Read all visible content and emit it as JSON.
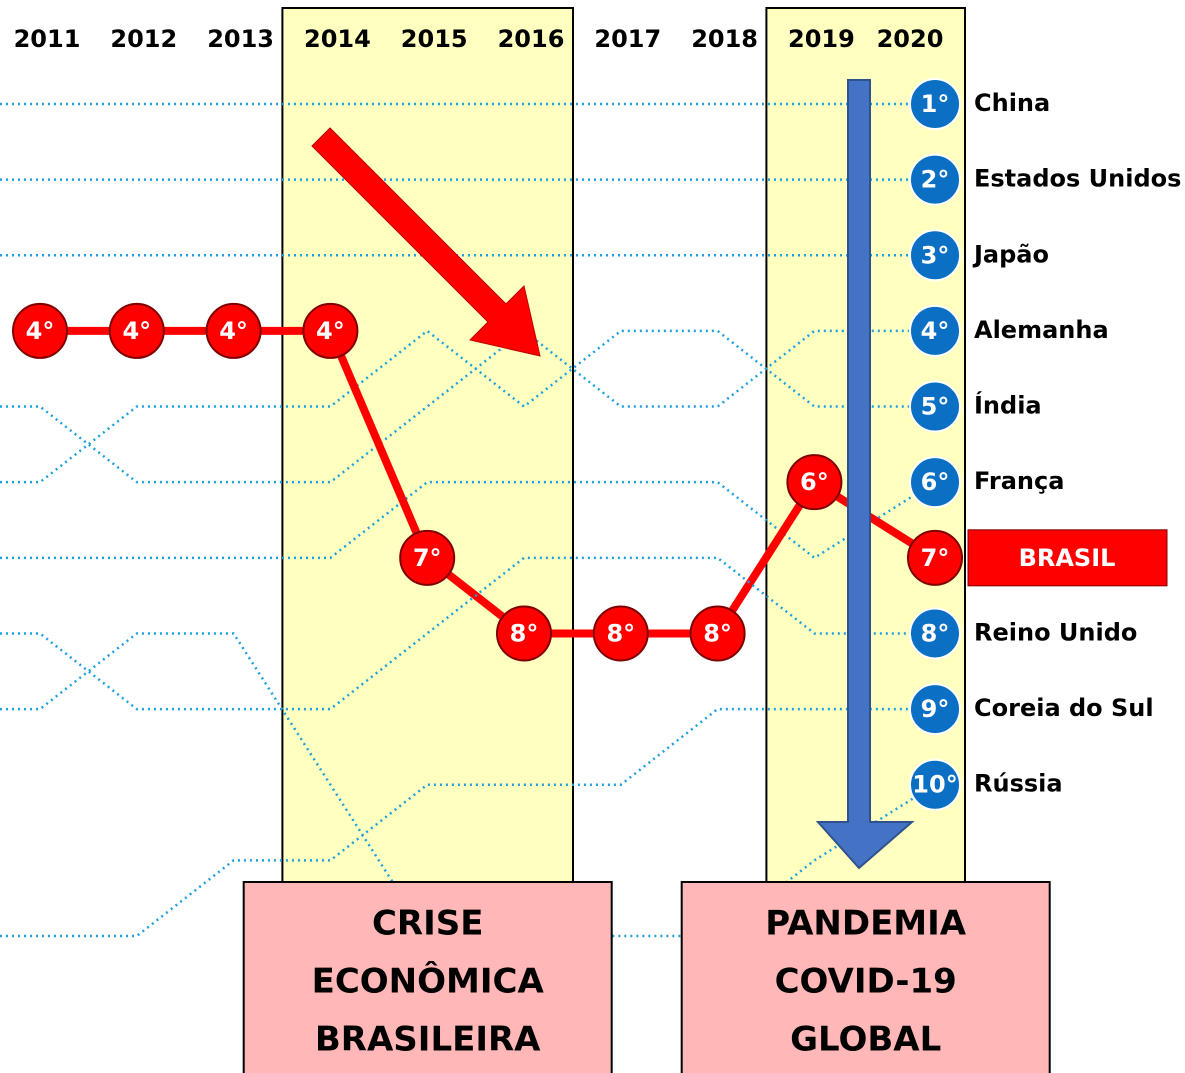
{
  "chart_data": {
    "type": "bump",
    "categories": [
      "2011",
      "2012",
      "2013",
      "2014",
      "2015",
      "2016",
      "2017",
      "2018",
      "2019",
      "2020"
    ],
    "ylim": [
      1,
      12
    ],
    "series": [
      {
        "name": "China",
        "color": "#1ea0e0",
        "values": [
          1,
          1,
          1,
          1,
          1,
          1,
          1,
          1,
          1,
          1
        ],
        "end_label": "1°"
      },
      {
        "name": "Estados Unidos",
        "color": "#1ea0e0",
        "values": [
          2,
          2,
          2,
          2,
          2,
          2,
          2,
          2,
          2,
          2
        ],
        "end_label": "2°"
      },
      {
        "name": "Japão",
        "color": "#1ea0e0",
        "values": [
          3,
          3,
          3,
          3,
          3,
          3,
          3,
          3,
          3,
          3
        ],
        "end_label": "3°"
      },
      {
        "name": "Alemanha",
        "color": "#1ea0e0",
        "values": [
          5,
          6,
          6,
          6,
          5,
          4,
          5,
          5,
          4,
          4
        ],
        "end_label": "4°"
      },
      {
        "name": "Índia",
        "color": "#1ea0e0",
        "values": [
          6,
          5,
          5,
          5,
          4,
          5,
          4,
          4,
          5,
          5
        ],
        "end_label": "5°"
      },
      {
        "name": "França",
        "color": "#1ea0e0",
        "values": [
          7,
          7,
          7,
          7,
          6,
          6,
          6,
          6,
          7,
          6
        ],
        "end_label": "6°"
      },
      {
        "name": "BRASIL",
        "color": "#ff0000",
        "highlight": true,
        "values": [
          4,
          4,
          4,
          4,
          7,
          8,
          8,
          8,
          6,
          7
        ],
        "value_labels": [
          "4°",
          "4°",
          "4°",
          "4°",
          "7°",
          "8°",
          "8°",
          "8°",
          "6°",
          "7°"
        ]
      },
      {
        "name": "Reino Unido",
        "color": "#1ea0e0",
        "values": [
          8,
          9,
          9,
          9,
          8,
          7,
          7,
          7,
          8,
          8
        ],
        "end_label": "8°"
      },
      {
        "name": "Coreia do Sul",
        "color": "#1ea0e0",
        "values": [
          12,
          12,
          11,
          11,
          10,
          10,
          10,
          9,
          9,
          9
        ],
        "end_label": "9°"
      },
      {
        "name": "Rússia",
        "color": "#1ea0e0",
        "values": [
          9,
          8,
          8,
          10,
          12,
          12,
          12,
          12,
          11,
          10
        ],
        "end_label": "10°"
      }
    ],
    "periods": [
      {
        "from": "2014",
        "to": "2016",
        "lines": [
          "CRISE",
          "ECONÔMICA",
          "BRASILEIRA"
        ]
      },
      {
        "from": "2019",
        "to": "2020",
        "lines": [
          "PANDEMIA",
          "COVID-19",
          "GLOBAL"
        ]
      }
    ]
  }
}
